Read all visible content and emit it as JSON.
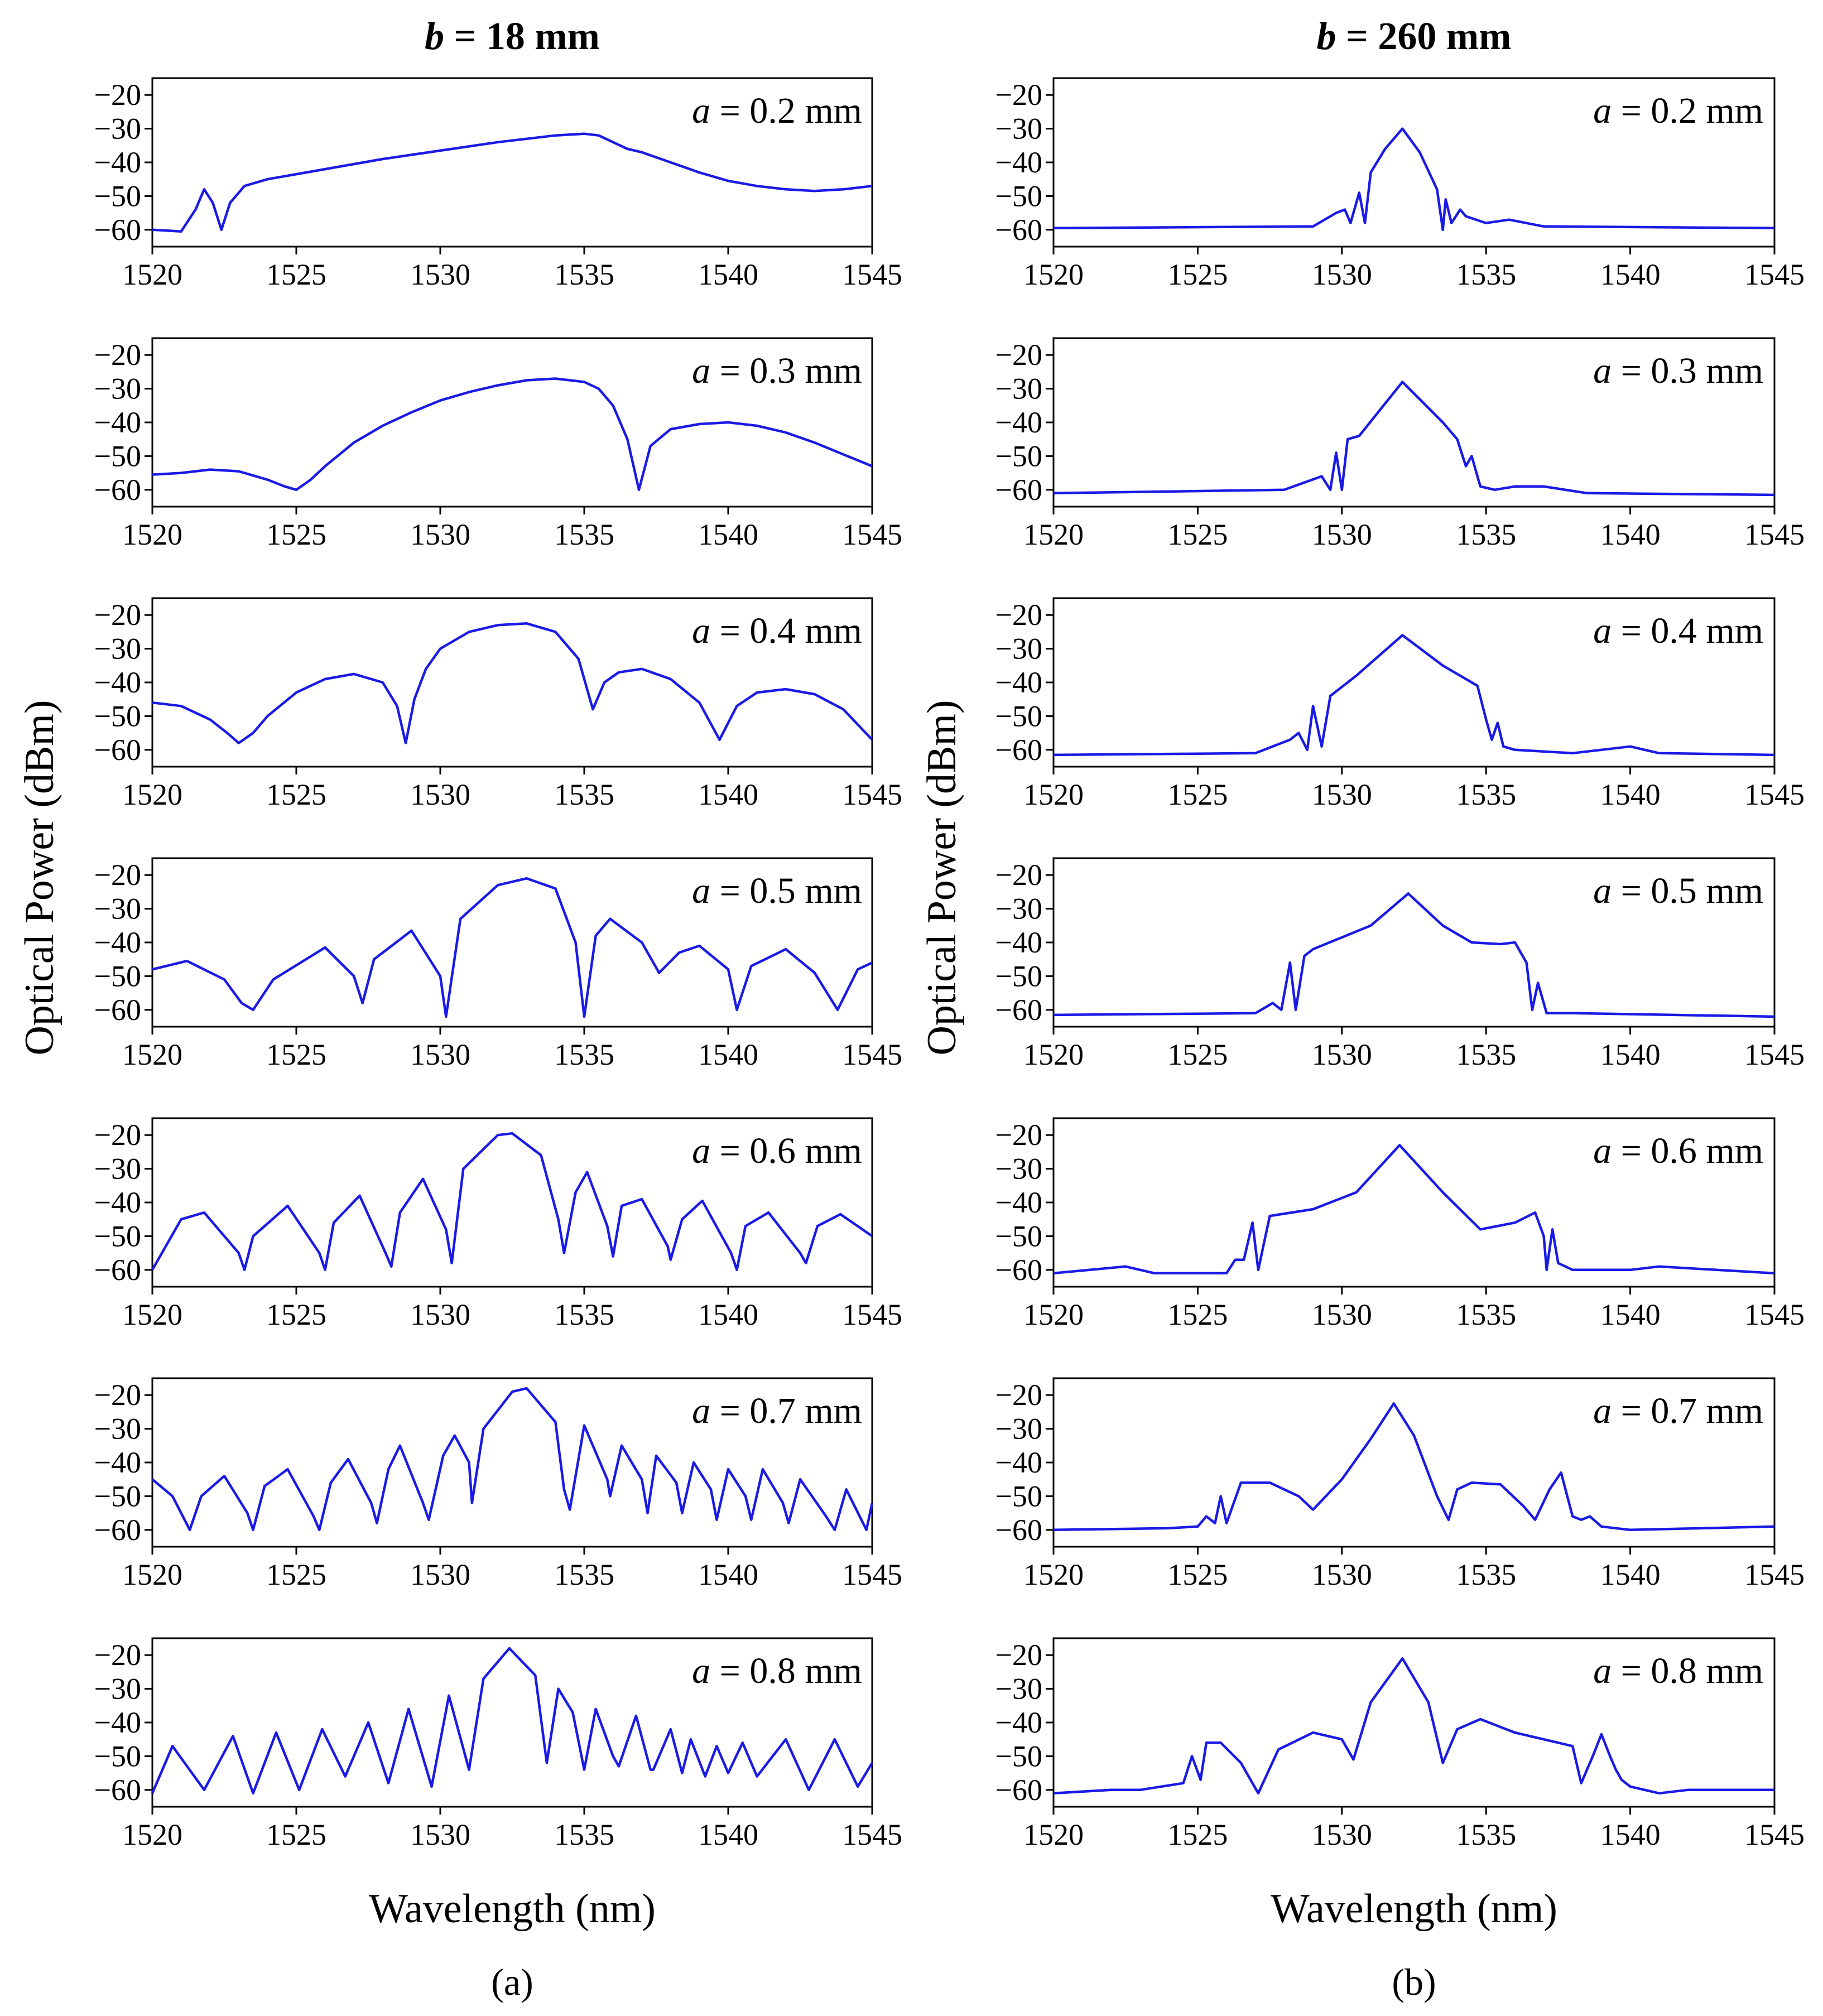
{
  "figure": {
    "x_axis_title": "Wavelength (nm)",
    "y_axis_title": "Optical Power (dBm)"
  },
  "chart_data": [
    {
      "type": "line",
      "column_label": "(a)",
      "title_var": "b",
      "title_value": "= 18 mm",
      "xlabel": "Wavelength (nm)",
      "ylabel": "Optical Power (dBm)",
      "xlim": [
        1520,
        1545
      ],
      "ylim": [
        -65,
        -15
      ],
      "xticks": [
        1520,
        1525,
        1530,
        1535,
        1540,
        1545
      ],
      "yticks": [
        -60,
        -50,
        -40,
        -30,
        -20
      ],
      "color": "#1a1ae6",
      "series": [
        {
          "a_var": "a",
          "a_value": "= 0.2 mm",
          "x": [
            1520,
            1521,
            1521.5,
            1521.8,
            1522.1,
            1522.4,
            1522.7,
            1523.2,
            1524,
            1526,
            1528,
            1530,
            1532,
            1534,
            1535,
            1535.5,
            1536,
            1536.5,
            1537,
            1538,
            1539,
            1540,
            1541,
            1542,
            1543,
            1544,
            1545
          ],
          "y": [
            -60,
            -60.5,
            -54,
            -48,
            -52,
            -60,
            -52,
            -47,
            -45,
            -42,
            -39,
            -36.5,
            -34,
            -32,
            -31.5,
            -32,
            -34,
            -36,
            -37,
            -40,
            -43,
            -45.5,
            -47,
            -48,
            -48.5,
            -48,
            -47
          ]
        },
        {
          "a_var": "a",
          "a_value": "= 0.3 mm",
          "x": [
            1520,
            1521,
            1522,
            1523,
            1524,
            1524.6,
            1525,
            1525.5,
            1526,
            1527,
            1528,
            1529,
            1530,
            1531,
            1532,
            1533,
            1534,
            1535,
            1535.5,
            1536,
            1536.5,
            1536.9,
            1537.3,
            1538,
            1539,
            1540,
            1541,
            1542,
            1543,
            1544,
            1545
          ],
          "y": [
            -55.5,
            -55,
            -54,
            -54.5,
            -57,
            -59,
            -60,
            -57,
            -53,
            -46,
            -41,
            -37,
            -33.5,
            -31,
            -29,
            -27.5,
            -27,
            -28,
            -30,
            -35,
            -45,
            -60,
            -47,
            -42,
            -40.5,
            -40,
            -41,
            -43,
            -46,
            -49.5,
            -53
          ]
        },
        {
          "a_var": "a",
          "a_value": "= 0.4 mm",
          "x": [
            1520,
            1521,
            1522,
            1522.6,
            1523,
            1523.5,
            1524,
            1525,
            1526,
            1527,
            1528,
            1528.5,
            1528.8,
            1529.1,
            1529.5,
            1530,
            1531,
            1532,
            1533,
            1534,
            1534.8,
            1535.3,
            1535.7,
            1536.2,
            1537,
            1538,
            1539,
            1539.7,
            1540.3,
            1541,
            1542,
            1543,
            1544,
            1545
          ],
          "y": [
            -46,
            -47,
            -51,
            -55,
            -58,
            -55,
            -50,
            -43,
            -39,
            -37.5,
            -40,
            -47,
            -58,
            -45,
            -36,
            -30,
            -25,
            -23,
            -22.5,
            -25,
            -33,
            -48,
            -40,
            -37,
            -36,
            -39,
            -46,
            -57,
            -47,
            -43,
            -42,
            -43.5,
            -48,
            -57
          ]
        },
        {
          "a_var": "a",
          "a_value": "= 0.5 mm",
          "x": [
            1520,
            1521.2,
            1522.5,
            1523.1,
            1523.5,
            1524.2,
            1526,
            1527,
            1527.3,
            1527.7,
            1529,
            1530,
            1530.2,
            1530.7,
            1532,
            1533,
            1534,
            1534.7,
            1535,
            1535.4,
            1535.9,
            1537,
            1537.6,
            1538.3,
            1539,
            1540,
            1540.3,
            1540.8,
            1542,
            1543,
            1543.8,
            1544.5,
            1545
          ],
          "y": [
            -48,
            -45.5,
            -51,
            -58,
            -60,
            -51,
            -41.5,
            -50,
            -58,
            -45,
            -36.5,
            -50,
            -62,
            -33,
            -23,
            -21,
            -24,
            -40,
            -62,
            -38,
            -33,
            -40,
            -49,
            -43,
            -41,
            -48,
            -60,
            -47,
            -42,
            -49,
            -60,
            -48,
            -46
          ]
        },
        {
          "a_var": "a",
          "a_value": "= 0.6 mm",
          "x": [
            1520,
            1521,
            1521.8,
            1523,
            1523.2,
            1523.5,
            1524.7,
            1525.8,
            1526,
            1526.3,
            1527.2,
            1528.1,
            1528.3,
            1528.6,
            1529.4,
            1530.2,
            1530.4,
            1530.8,
            1532,
            1532.5,
            1533.5,
            1534.1,
            1534.3,
            1534.7,
            1535.1,
            1535.8,
            1536,
            1536.3,
            1537,
            1537.9,
            1538,
            1538.4,
            1539.1,
            1540.1,
            1540.3,
            1540.6,
            1541.4,
            1542.5,
            1542.7,
            1543.1,
            1543.9,
            1545
          ],
          "y": [
            -60,
            -45,
            -43,
            -55,
            -60,
            -50,
            -41,
            -55,
            -60,
            -46,
            -38,
            -55,
            -59,
            -43,
            -33,
            -48,
            -58,
            -30,
            -20,
            -19.5,
            -26,
            -45,
            -55,
            -37,
            -31,
            -47,
            -56,
            -41,
            -39,
            -53,
            -57,
            -45,
            -39.5,
            -55,
            -60,
            -47,
            -43,
            -55,
            -58,
            -47,
            -43.5,
            -50
          ]
        },
        {
          "a_var": "a",
          "a_value": "= 0.7 mm",
          "x": [
            1520,
            1520.7,
            1521.3,
            1521.7,
            1522.5,
            1523.3,
            1523.5,
            1523.9,
            1524.7,
            1525.6,
            1525.8,
            1526.2,
            1526.8,
            1527.6,
            1527.8,
            1528.2,
            1528.6,
            1529.4,
            1529.6,
            1530.1,
            1530.5,
            1531,
            1531.1,
            1531.5,
            1532.5,
            1533,
            1534,
            1534.3,
            1534.5,
            1535,
            1535.8,
            1535.9,
            1536.3,
            1537,
            1537.2,
            1537.5,
            1538.2,
            1538.4,
            1538.8,
            1539.4,
            1539.6,
            1540,
            1540.6,
            1540.8,
            1541.2,
            1541.9,
            1542.1,
            1542.5,
            1543.4,
            1543.7,
            1544.1,
            1544.8,
            1545
          ],
          "y": [
            -45,
            -50,
            -60,
            -50,
            -44,
            -55,
            -60,
            -47,
            -42,
            -56,
            -60,
            -46,
            -39,
            -52,
            -58,
            -42,
            -35,
            -52,
            -57,
            -38,
            -32,
            -40,
            -52,
            -30,
            -19,
            -18,
            -28,
            -48,
            -54,
            -29,
            -45,
            -50,
            -35,
            -45,
            -55,
            -38,
            -46,
            -55,
            -40,
            -48,
            -57,
            -42,
            -50,
            -57,
            -42,
            -52,
            -58,
            -45,
            -56,
            -60,
            -48,
            -60,
            -52
          ]
        },
        {
          "a_var": "a",
          "a_value": "= 0.8 mm",
          "x": [
            1520,
            1520.7,
            1521.8,
            1522.8,
            1523.5,
            1524.3,
            1525.1,
            1525.9,
            1526.7,
            1527.5,
            1528.2,
            1528.9,
            1529.7,
            1530.3,
            1531,
            1531.5,
            1532.4,
            1533.3,
            1533.7,
            1534.1,
            1534.6,
            1535,
            1535.4,
            1536,
            1536.2,
            1536.8,
            1537.3,
            1537.4,
            1538,
            1538.4,
            1538.7,
            1539.2,
            1539.6,
            1540,
            1540.5,
            1541,
            1542,
            1542.8,
            1543.7,
            1544.5,
            1545
          ],
          "y": [
            -61,
            -47,
            -60,
            -44,
            -61,
            -43,
            -60,
            -42,
            -56,
            -40,
            -58,
            -36,
            -59,
            -32,
            -54,
            -27,
            -18,
            -26,
            -52,
            -30,
            -37,
            -54,
            -36,
            -50,
            -53,
            -38,
            -54,
            -54,
            -42,
            -55,
            -45,
            -56,
            -47,
            -55,
            -46,
            -56,
            -45,
            -60,
            -45,
            -59,
            -52
          ]
        }
      ]
    },
    {
      "type": "line",
      "column_label": "(b)",
      "title_var": "b",
      "title_value": "= 260 mm",
      "xlabel": "Wavelength (nm)",
      "ylabel": "Optical Power (dBm)",
      "xlim": [
        1520,
        1545
      ],
      "ylim": [
        -65,
        -15
      ],
      "xticks": [
        1520,
        1525,
        1530,
        1535,
        1540,
        1545
      ],
      "yticks": [
        -60,
        -50,
        -40,
        -30,
        -20
      ],
      "color": "#1a1ae6",
      "series": [
        {
          "a_var": "a",
          "a_value": "= 0.2 mm",
          "x": [
            1520,
            1529,
            1529.8,
            1530.1,
            1530.3,
            1530.6,
            1530.8,
            1531,
            1531.5,
            1532.1,
            1532.7,
            1533.3,
            1533.5,
            1533.6,
            1533.8,
            1534.1,
            1534.3,
            1535,
            1535.8,
            1537,
            1545
          ],
          "y": [
            -59.5,
            -59,
            -55,
            -54,
            -58,
            -49,
            -58,
            -43,
            -36,
            -30,
            -37,
            -48,
            -60,
            -51,
            -58,
            -54,
            -56,
            -58,
            -57,
            -59,
            -59.5
          ]
        },
        {
          "a_var": "a",
          "a_value": "= 0.3 mm",
          "x": [
            1520,
            1528,
            1529.3,
            1529.6,
            1529.8,
            1530,
            1530.2,
            1530.6,
            1532.1,
            1533.5,
            1534,
            1534.3,
            1534.5,
            1534.8,
            1535.3,
            1536,
            1537,
            1538.5,
            1545
          ],
          "y": [
            -61,
            -60,
            -56,
            -60,
            -49,
            -60,
            -45,
            -44,
            -28,
            -40,
            -45,
            -53,
            -50,
            -59,
            -60,
            -59,
            -59,
            -61,
            -61.5
          ]
        },
        {
          "a_var": "a",
          "a_value": "= 0.4 mm",
          "x": [
            1520,
            1527,
            1528.2,
            1528.5,
            1528.8,
            1529,
            1529.3,
            1529.6,
            1530.5,
            1532.1,
            1533.5,
            1534.7,
            1535,
            1535.2,
            1535.4,
            1535.6,
            1536,
            1538,
            1540,
            1541,
            1545
          ],
          "y": [
            -61.5,
            -61,
            -57,
            -55,
            -60,
            -47,
            -59,
            -44,
            -38,
            -26,
            -35,
            -41,
            -51,
            -57,
            -52,
            -59,
            -60,
            -61,
            -59,
            -61,
            -61.5
          ]
        },
        {
          "a_var": "a",
          "a_value": "= 0.5 mm",
          "x": [
            1520,
            1527,
            1527.6,
            1527.9,
            1528.2,
            1528.4,
            1528.7,
            1529,
            1531,
            1532.3,
            1533.5,
            1534.5,
            1535.5,
            1536,
            1536.4,
            1536.6,
            1536.8,
            1537.1,
            1538,
            1545
          ],
          "y": [
            -61.5,
            -61,
            -58,
            -60,
            -46,
            -60,
            -44,
            -42,
            -35,
            -25.5,
            -35,
            -40,
            -40.5,
            -40,
            -46,
            -60,
            -52,
            -61,
            -61,
            -62
          ]
        },
        {
          "a_var": "a",
          "a_value": "= 0.6 mm",
          "x": [
            1520,
            1522.5,
            1523.5,
            1526,
            1526.3,
            1526.6,
            1526.9,
            1527.1,
            1527.5,
            1529,
            1530.5,
            1532,
            1533.5,
            1534.8,
            1536,
            1536.7,
            1537,
            1537.1,
            1537.3,
            1537.5,
            1538,
            1540,
            1541,
            1545
          ],
          "y": [
            -61,
            -59,
            -61,
            -61,
            -57,
            -57,
            -46,
            -60,
            -44,
            -42,
            -37,
            -23,
            -37,
            -48,
            -46,
            -43,
            -50,
            -60,
            -48,
            -58,
            -60,
            -60,
            -59,
            -61
          ]
        },
        {
          "a_var": "a",
          "a_value": "= 0.7 mm",
          "x": [
            1520,
            1524,
            1525,
            1525.3,
            1525.6,
            1525.8,
            1526,
            1526.5,
            1527.5,
            1528.5,
            1529,
            1530,
            1531,
            1531.8,
            1532.5,
            1533.3,
            1533.7,
            1534,
            1534.5,
            1535.5,
            1536.3,
            1536.7,
            1537.2,
            1537.6,
            1538,
            1538.3,
            1538.6,
            1539,
            1540,
            1545
          ],
          "y": [
            -60,
            -59.5,
            -59,
            -56,
            -58,
            -50,
            -58,
            -46,
            -46,
            -50,
            -54,
            -45,
            -33,
            -22.5,
            -32,
            -50,
            -57,
            -48,
            -46,
            -46.5,
            -53,
            -57,
            -48,
            -43,
            -56,
            -57,
            -56,
            -59,
            -60,
            -59
          ]
        },
        {
          "a_var": "a",
          "a_value": "= 0.8 mm",
          "x": [
            1520,
            1522,
            1523,
            1524.5,
            1524.8,
            1525.1,
            1525.3,
            1525.8,
            1526.5,
            1527.1,
            1527.8,
            1529,
            1530,
            1530.4,
            1531,
            1532.1,
            1533,
            1533.5,
            1534,
            1534.8,
            1536,
            1537,
            1538,
            1538.3,
            1538.7,
            1539,
            1539.3,
            1539.5,
            1539.7,
            1540,
            1541,
            1542,
            1543,
            1545
          ],
          "y": [
            -61,
            -60,
            -60,
            -58,
            -50,
            -57,
            -46,
            -46,
            -52,
            -61,
            -48,
            -43,
            -45,
            -51,
            -34,
            -21,
            -34,
            -52,
            -42,
            -39,
            -43,
            -45,
            -47,
            -58,
            -50,
            -43.5,
            -50,
            -54,
            -57,
            -59,
            -61,
            -60,
            -60,
            -60
          ]
        }
      ]
    }
  ]
}
